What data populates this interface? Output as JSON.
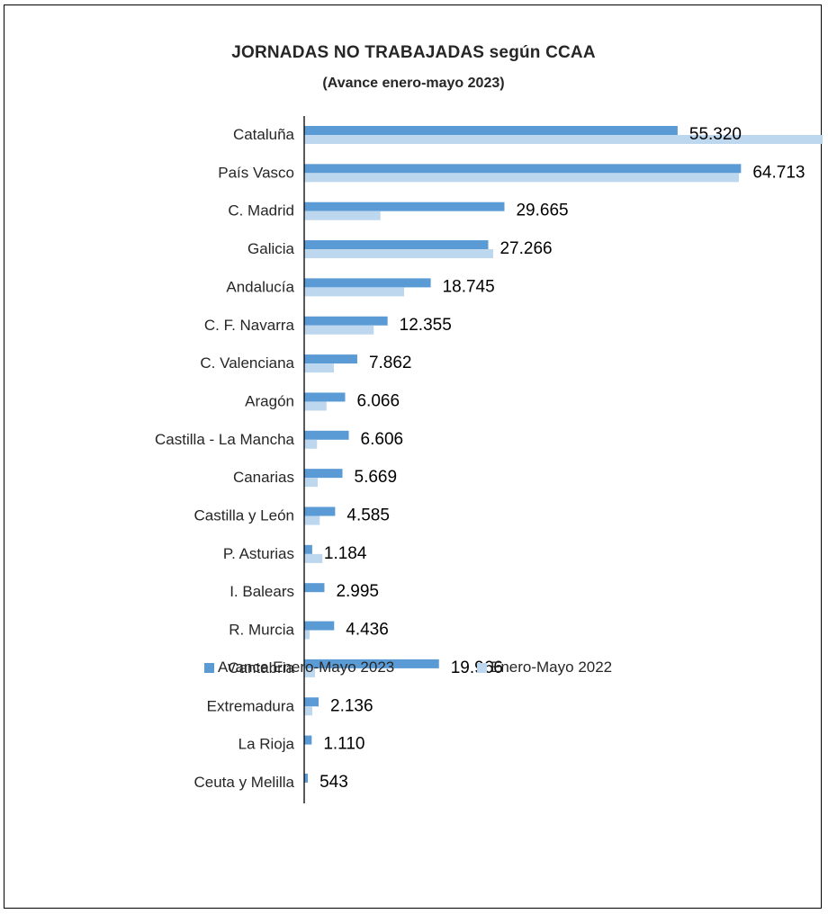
{
  "colors": {
    "series_2023": "#5b9bd5",
    "series_2022": "#bdd7ee",
    "text": "#262626"
  },
  "chart_data": {
    "type": "bar",
    "orientation": "horizontal",
    "title": "JORNADAS  NO TRABAJADAS  según  CCAA",
    "subtitle": "(Avance enero-mayo 2023)",
    "categories": [
      "Cataluña",
      "País Vasco",
      "C. Madrid",
      "Galicia",
      "Andalucía",
      "C. F. Navarra",
      "C. Valenciana",
      "Aragón",
      "Castilla - La Mancha",
      "Canarias",
      "Castilla y León",
      "P. Asturias",
      "I. Balears",
      "R. Murcia",
      "Cantabria",
      "Extremadura",
      "La Rioja",
      "Ceuta y Melilla"
    ],
    "series": [
      {
        "name": "Avance Enero-Mayo 2023",
        "values": [
          55320,
          64713,
          29665,
          27266,
          18745,
          12355,
          7862,
          6066,
          6606,
          5669,
          4585,
          1184,
          2995,
          4436,
          19966,
          2136,
          1110,
          543
        ],
        "labels": [
          "55.320",
          "64.713",
          "29.665",
          "27.266",
          "18.745",
          "12.355",
          "7.862",
          "6.066",
          "6.606",
          "5.669",
          "4.585",
          "1.184",
          "2.995",
          "4.436",
          "19.966",
          "2.136",
          "1.110",
          "543"
        ]
      },
      {
        "name": "Enero-Mayo 2022",
        "values": [
          77500,
          64400,
          11300,
          28000,
          14800,
          10300,
          4400,
          3300,
          1900,
          2000,
          2300,
          2700,
          0,
          800,
          1600,
          1200,
          0,
          0
        ]
      }
    ],
    "xlim": [
      0,
      80000
    ],
    "grid": false,
    "legend_position": "bottom"
  }
}
